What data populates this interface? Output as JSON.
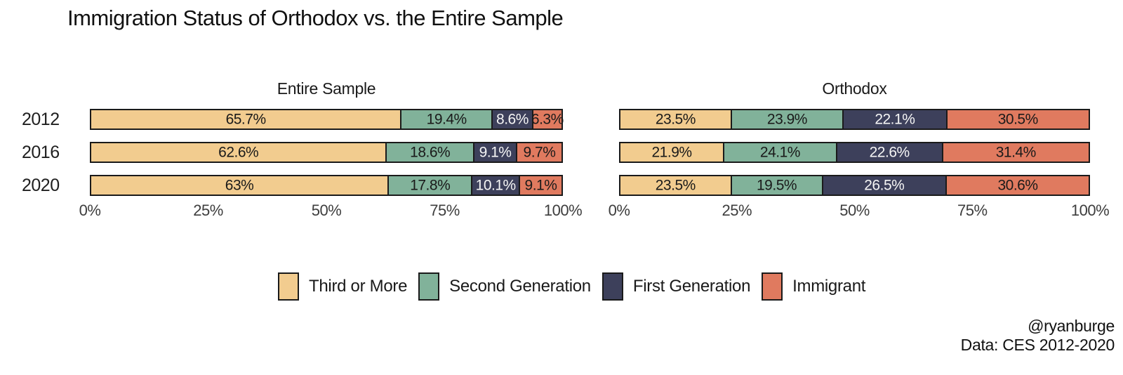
{
  "chart_data": {
    "type": "bar",
    "variant": "horizontal-stacked-faceted",
    "title": "Immigration Status of Orthodox vs. the Entire Sample",
    "xlim": [
      0,
      100
    ],
    "x_ticks": [
      "0%",
      "25%",
      "50%",
      "75%",
      "100%"
    ],
    "grid": "off",
    "years": [
      "2012",
      "2016",
      "2020"
    ],
    "categories": [
      {
        "name": "Third or More",
        "color": "#F2CC8F",
        "label_color": "#1a1a1a"
      },
      {
        "name": "Second Generation",
        "color": "#81B29A",
        "label_color": "#1a1a1a"
      },
      {
        "name": "First Generation",
        "color": "#3D405B",
        "label_color": "#f5f5f5"
      },
      {
        "name": "Immigrant",
        "color": "#E07A5F",
        "label_color": "#1a1a1a"
      }
    ],
    "panels": [
      {
        "title": "Entire Sample",
        "rows": [
          {
            "year": "2012",
            "values": [
              65.7,
              19.4,
              8.6,
              6.3
            ],
            "labels": [
              "65.7%",
              "19.4%",
              "8.6%",
              "6.3%"
            ]
          },
          {
            "year": "2016",
            "values": [
              62.6,
              18.6,
              9.1,
              9.7
            ],
            "labels": [
              "62.6%",
              "18.6%",
              "9.1%",
              "9.7%"
            ]
          },
          {
            "year": "2020",
            "values": [
              63,
              17.8,
              10.1,
              9.1
            ],
            "labels": [
              "63%",
              "17.8%",
              "10.1%",
              "9.1%"
            ]
          }
        ]
      },
      {
        "title": "Orthodox",
        "rows": [
          {
            "year": "2012",
            "values": [
              23.5,
              23.9,
              22.1,
              30.5
            ],
            "labels": [
              "23.5%",
              "23.9%",
              "22.1%",
              "30.5%"
            ]
          },
          {
            "year": "2016",
            "values": [
              21.9,
              24.1,
              22.6,
              31.4
            ],
            "labels": [
              "21.9%",
              "24.1%",
              "22.6%",
              "31.4%"
            ]
          },
          {
            "year": "2020",
            "values": [
              23.5,
              19.5,
              26.5,
              30.6
            ],
            "labels": [
              "23.5%",
              "19.5%",
              "26.5%",
              "30.6%"
            ]
          }
        ]
      }
    ],
    "legend_position": "bottom-center",
    "credit_line1": "@ryanburge",
    "credit_line2": "Data: CES 2012-2020"
  }
}
